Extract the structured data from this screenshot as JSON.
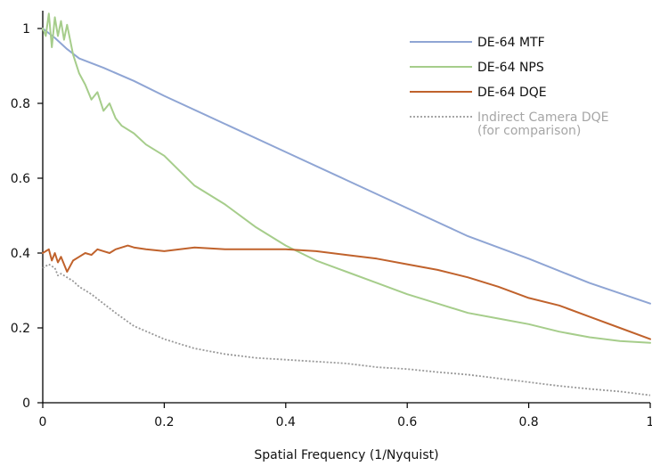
{
  "chart_data": {
    "type": "line",
    "title": "",
    "xlabel": "Spatial Frequency (1/Nyquist)",
    "ylabel": "",
    "xlim": [
      0,
      1
    ],
    "ylim": [
      0,
      1
    ],
    "x_ticks": [
      "0",
      "0.2",
      "0.4",
      "0.6",
      "0.8",
      "1"
    ],
    "y_ticks": [
      "0",
      "0.2",
      "0.4",
      "0.6",
      "0.8",
      "1"
    ],
    "grid": false,
    "legend_position": "top-right",
    "series": [
      {
        "name": "DE-64 MTF",
        "color": "#8fa5d4",
        "dash": "solid",
        "x": [
          0,
          0.02,
          0.04,
          0.06,
          0.1,
          0.15,
          0.2,
          0.3,
          0.4,
          0.5,
          0.6,
          0.7,
          0.8,
          0.9,
          1.0
        ],
        "y": [
          1.0,
          0.975,
          0.945,
          0.92,
          0.895,
          0.86,
          0.82,
          0.745,
          0.67,
          0.595,
          0.52,
          0.445,
          0.385,
          0.32,
          0.265
        ]
      },
      {
        "name": "DE-64 NPS",
        "color": "#a6cd8b",
        "dash": "solid",
        "x": [
          0,
          0.005,
          0.01,
          0.015,
          0.02,
          0.025,
          0.03,
          0.035,
          0.04,
          0.05,
          0.06,
          0.07,
          0.08,
          0.09,
          0.1,
          0.11,
          0.12,
          0.13,
          0.15,
          0.17,
          0.2,
          0.25,
          0.3,
          0.35,
          0.4,
          0.45,
          0.5,
          0.55,
          0.6,
          0.65,
          0.7,
          0.75,
          0.8,
          0.85,
          0.9,
          0.95,
          1.0
        ],
        "y": [
          1.0,
          0.98,
          1.04,
          0.95,
          1.03,
          0.98,
          1.02,
          0.97,
          1.01,
          0.93,
          0.88,
          0.85,
          0.81,
          0.83,
          0.78,
          0.8,
          0.76,
          0.74,
          0.72,
          0.69,
          0.66,
          0.58,
          0.53,
          0.47,
          0.42,
          0.38,
          0.35,
          0.32,
          0.29,
          0.265,
          0.24,
          0.225,
          0.21,
          0.19,
          0.175,
          0.165,
          0.16
        ]
      },
      {
        "name": "DE-64 DQE",
        "color": "#c0622c",
        "dash": "solid",
        "x": [
          0,
          0.01,
          0.015,
          0.02,
          0.025,
          0.03,
          0.035,
          0.04,
          0.045,
          0.05,
          0.06,
          0.07,
          0.08,
          0.09,
          0.1,
          0.11,
          0.12,
          0.13,
          0.14,
          0.15,
          0.17,
          0.2,
          0.25,
          0.3,
          0.35,
          0.4,
          0.45,
          0.5,
          0.55,
          0.6,
          0.65,
          0.7,
          0.75,
          0.8,
          0.85,
          0.9,
          0.95,
          1.0
        ],
        "y": [
          0.4,
          0.41,
          0.38,
          0.4,
          0.375,
          0.39,
          0.37,
          0.35,
          0.365,
          0.38,
          0.39,
          0.4,
          0.395,
          0.41,
          0.405,
          0.4,
          0.41,
          0.415,
          0.42,
          0.415,
          0.41,
          0.405,
          0.415,
          0.41,
          0.41,
          0.41,
          0.405,
          0.395,
          0.385,
          0.37,
          0.355,
          0.335,
          0.31,
          0.28,
          0.26,
          0.23,
          0.2,
          0.17
        ]
      },
      {
        "name": "Indirect Camera DQE",
        "name_line2": "(for comparison)",
        "color": "#999999",
        "dash": "dotted",
        "x": [
          0,
          0.01,
          0.02,
          0.025,
          0.03,
          0.04,
          0.05,
          0.06,
          0.08,
          0.1,
          0.12,
          0.15,
          0.2,
          0.25,
          0.3,
          0.35,
          0.4,
          0.45,
          0.5,
          0.55,
          0.6,
          0.65,
          0.7,
          0.75,
          0.8,
          0.85,
          0.9,
          0.95,
          1.0
        ],
        "y": [
          0.36,
          0.37,
          0.36,
          0.34,
          0.345,
          0.335,
          0.325,
          0.31,
          0.29,
          0.265,
          0.24,
          0.205,
          0.17,
          0.145,
          0.13,
          0.12,
          0.115,
          0.11,
          0.105,
          0.095,
          0.09,
          0.082,
          0.075,
          0.065,
          0.055,
          0.045,
          0.037,
          0.03,
          0.02
        ]
      }
    ]
  }
}
